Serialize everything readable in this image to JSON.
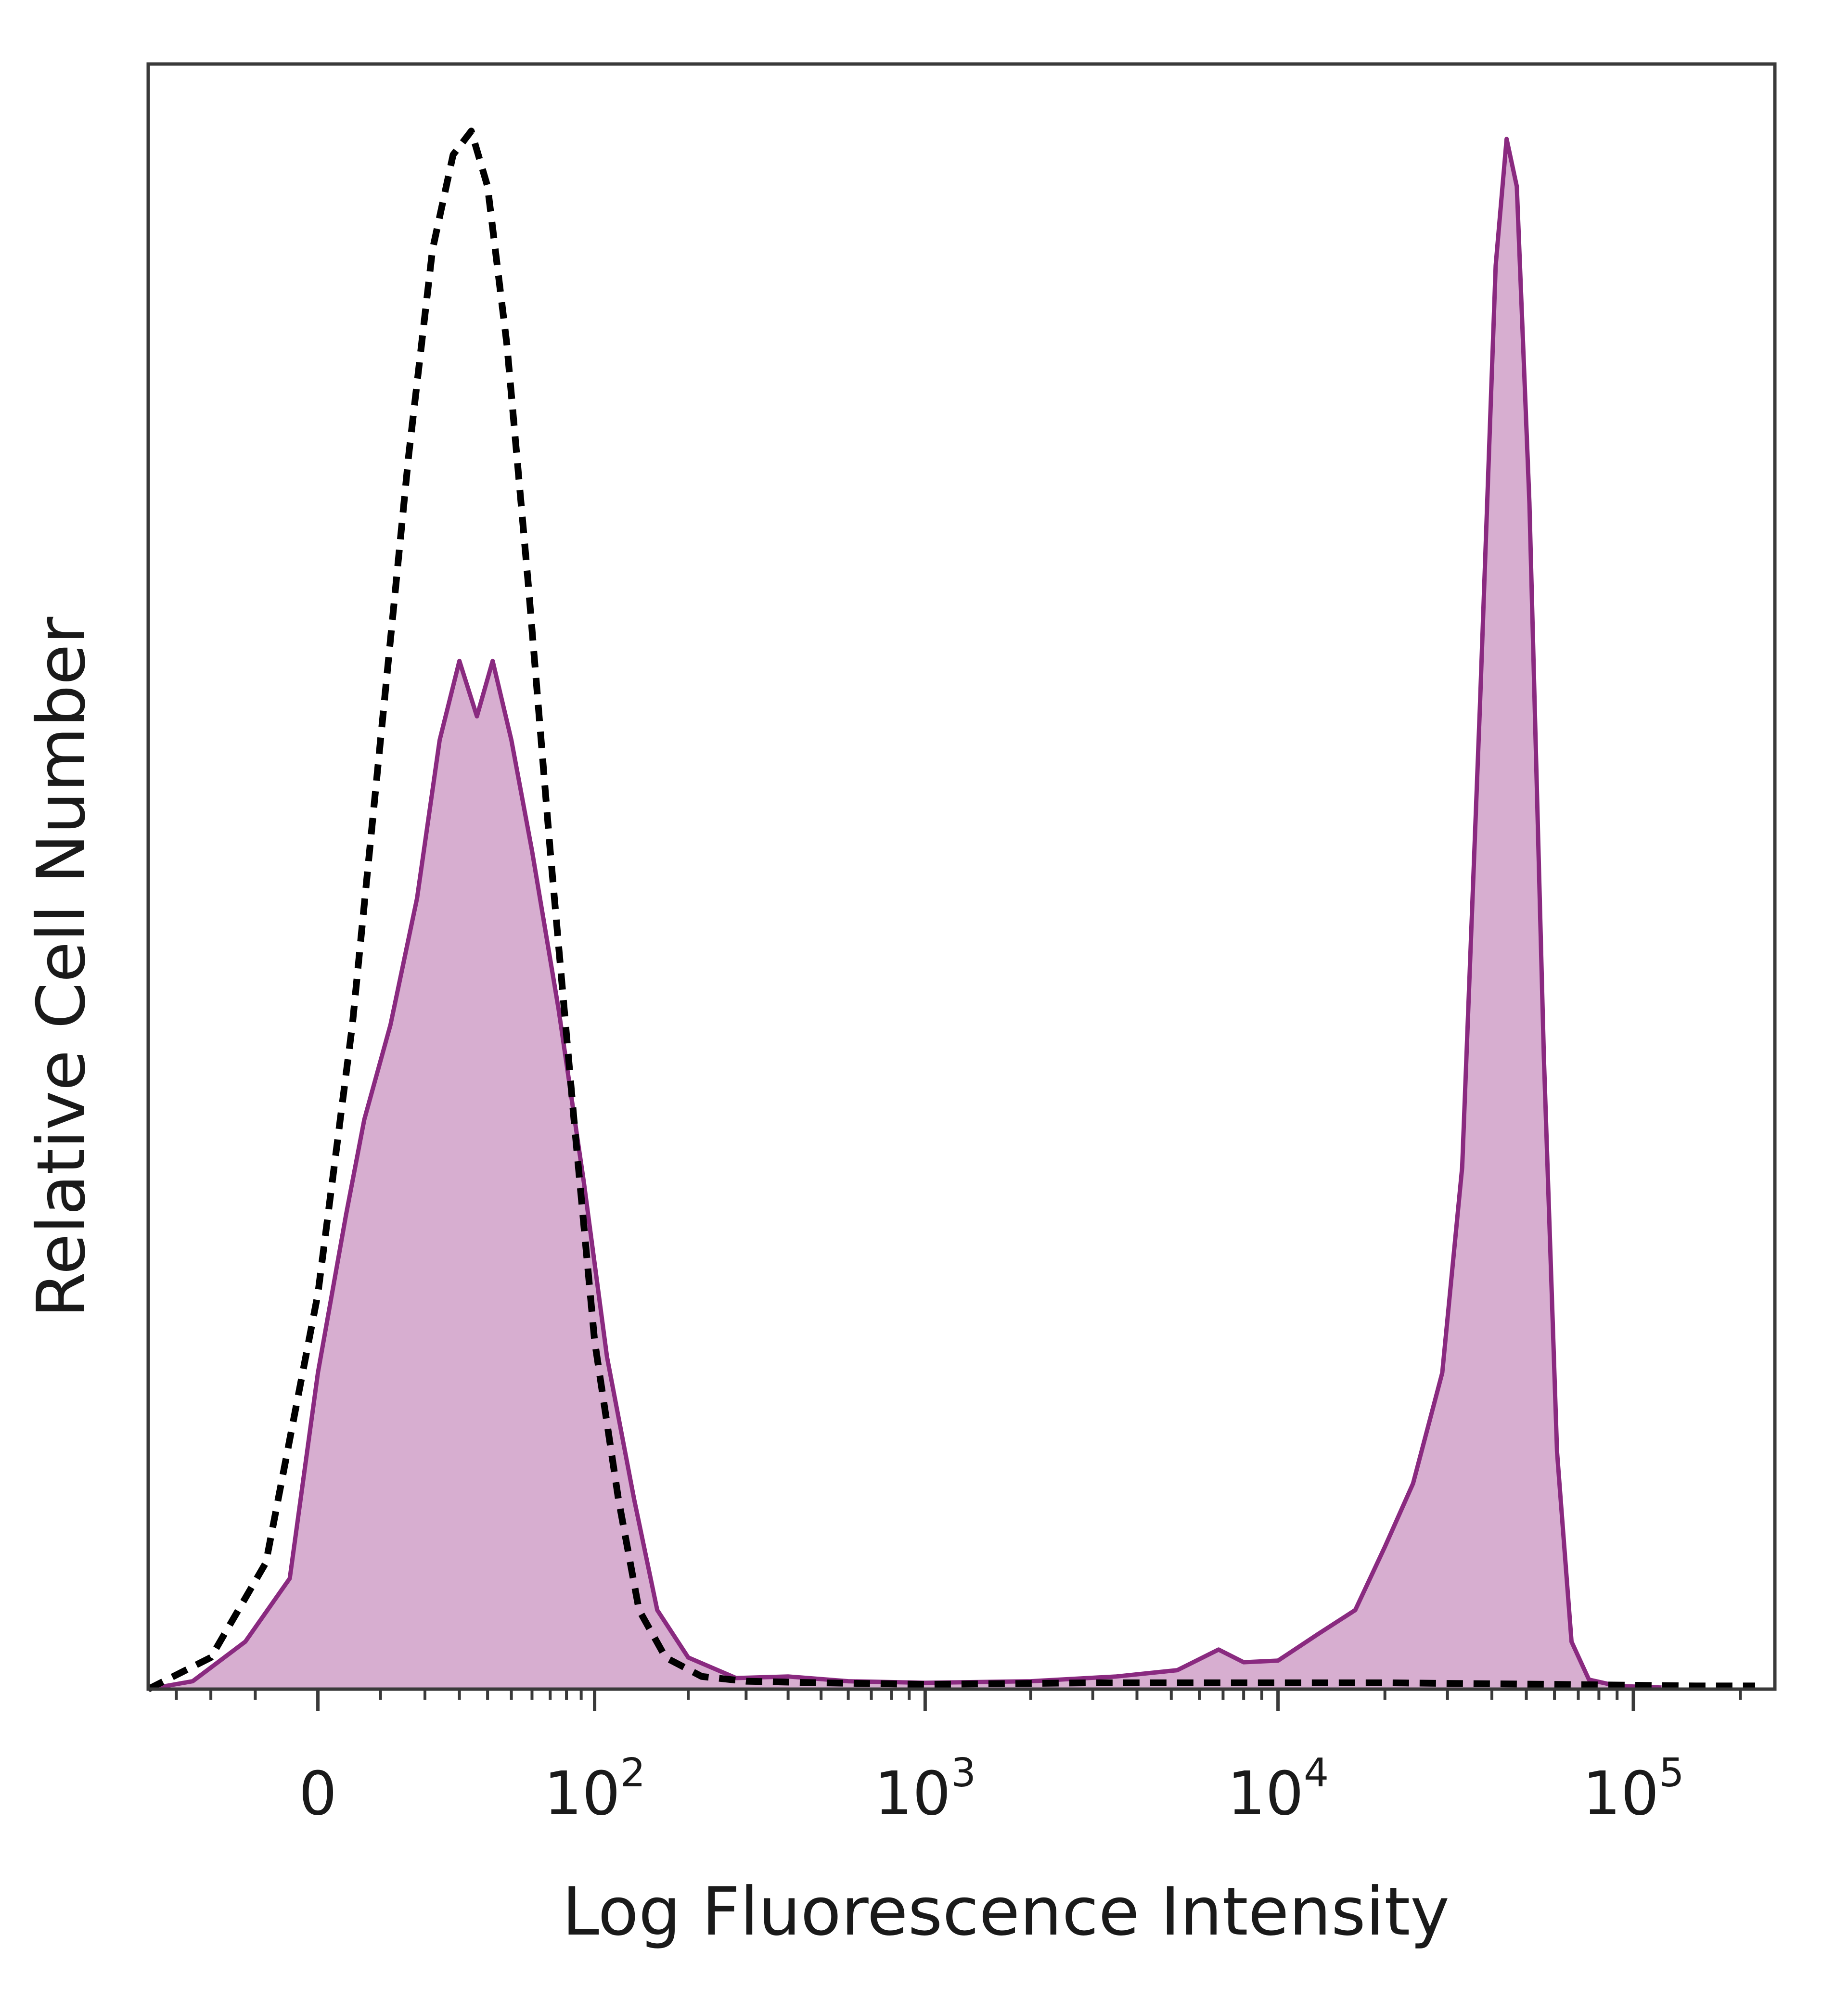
{
  "chart_data": {
    "type": "area",
    "xlabel": "Log Fluorescence Intensity",
    "ylabel": "Relative Cell Number",
    "x_scale": "biexponential",
    "x_ticks": [
      {
        "value": 0,
        "label": "0"
      },
      {
        "value": 100,
        "label": "10",
        "exp": "2"
      },
      {
        "value": 1000,
        "label": "10",
        "exp": "3"
      },
      {
        "value": 10000,
        "label": "10",
        "exp": "4"
      },
      {
        "value": 100000,
        "label": "10",
        "exp": "5"
      }
    ],
    "xlim": [
      -40,
      250000
    ],
    "ylim": [
      0,
      1.0
    ],
    "grid": false,
    "series": [
      {
        "style": "filled",
        "color": "#8a2a80",
        "fill": "#d7aed0",
        "points": [
          [
            -40,
            0.0
          ],
          [
            -25,
            0.005
          ],
          [
            -12,
            0.03
          ],
          [
            -4,
            0.07
          ],
          [
            0,
            0.2
          ],
          [
            4,
            0.3
          ],
          [
            7,
            0.36
          ],
          [
            12,
            0.42
          ],
          [
            18,
            0.5
          ],
          [
            24,
            0.6
          ],
          [
            30,
            0.65
          ],
          [
            36,
            0.615
          ],
          [
            42,
            0.65
          ],
          [
            50,
            0.6
          ],
          [
            60,
            0.53
          ],
          [
            75,
            0.43
          ],
          [
            92,
            0.32
          ],
          [
            110,
            0.21
          ],
          [
            135,
            0.12
          ],
          [
            160,
            0.05
          ],
          [
            200,
            0.02
          ],
          [
            280,
            0.007
          ],
          [
            400,
            0.008
          ],
          [
            600,
            0.005
          ],
          [
            1000,
            0.004
          ],
          [
            2000,
            0.005
          ],
          [
            3500,
            0.008
          ],
          [
            5200,
            0.012
          ],
          [
            6800,
            0.025
          ],
          [
            8000,
            0.017
          ],
          [
            10000,
            0.018
          ],
          [
            13000,
            0.035
          ],
          [
            16500,
            0.05
          ],
          [
            20000,
            0.09
          ],
          [
            24000,
            0.13
          ],
          [
            29000,
            0.2
          ],
          [
            33000,
            0.33
          ],
          [
            37000,
            0.62
          ],
          [
            41000,
            0.9
          ],
          [
            44000,
            0.98
          ],
          [
            47000,
            0.95
          ],
          [
            51000,
            0.75
          ],
          [
            56000,
            0.4
          ],
          [
            61000,
            0.15
          ],
          [
            67000,
            0.03
          ],
          [
            75000,
            0.006
          ],
          [
            90000,
            0.002
          ],
          [
            120000,
            0.001
          ]
        ]
      },
      {
        "style": "dashed",
        "color": "#000000",
        "points": [
          [
            -40,
            0.0
          ],
          [
            -20,
            0.02
          ],
          [
            -8,
            0.08
          ],
          [
            0,
            0.25
          ],
          [
            5,
            0.42
          ],
          [
            10,
            0.6
          ],
          [
            16,
            0.78
          ],
          [
            22,
            0.91
          ],
          [
            28,
            0.97
          ],
          [
            34,
            0.985
          ],
          [
            40,
            0.95
          ],
          [
            48,
            0.85
          ],
          [
            58,
            0.7
          ],
          [
            70,
            0.53
          ],
          [
            85,
            0.36
          ],
          [
            100,
            0.22
          ],
          [
            120,
            0.12
          ],
          [
            140,
            0.05
          ],
          [
            170,
            0.02
          ],
          [
            220,
            0.008
          ],
          [
            300,
            0.005
          ],
          [
            500,
            0.004
          ],
          [
            1000,
            0.003
          ],
          [
            3000,
            0.004
          ],
          [
            8000,
            0.004
          ],
          [
            20000,
            0.004
          ],
          [
            60000,
            0.003
          ],
          [
            150000,
            0.002
          ],
          [
            220000,
            0.002
          ]
        ]
      }
    ]
  }
}
